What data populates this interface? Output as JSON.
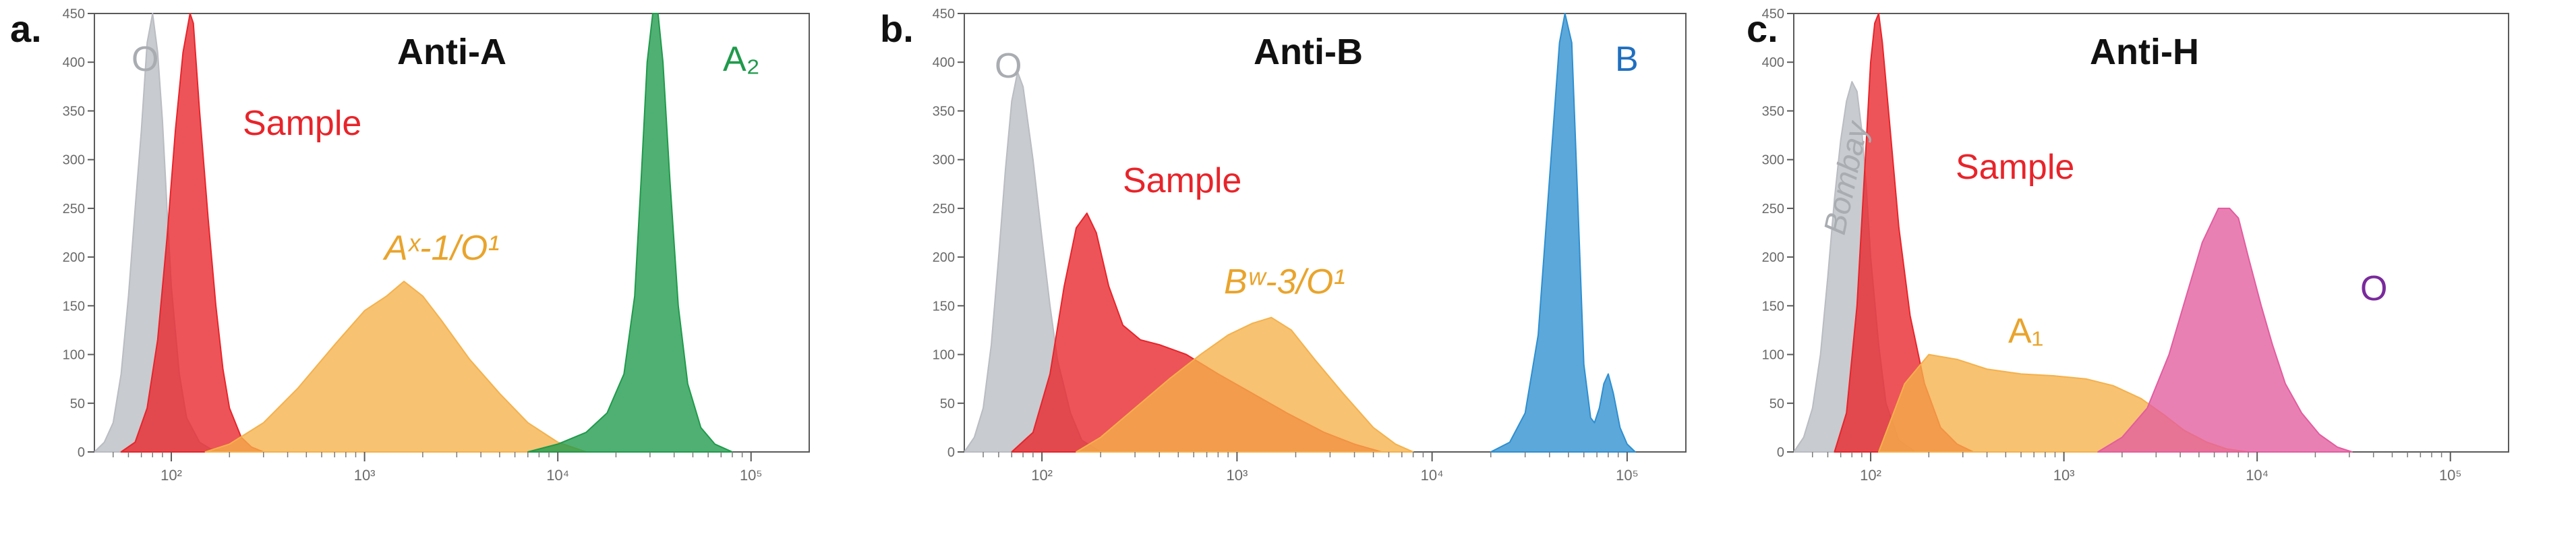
{
  "chart_data": [
    {
      "type": "area",
      "panel_letter": "a.",
      "title": "Anti-A",
      "xscale": "log",
      "xlim": [
        40,
        200000
      ],
      "ylim": [
        0,
        450
      ],
      "xticks": [
        100,
        1000,
        10000,
        100000
      ],
      "xtick_labels": [
        "10²",
        "10³",
        "10⁴",
        "10⁵"
      ],
      "yticks": [
        0,
        50,
        100,
        150,
        200,
        250,
        300,
        350,
        400,
        450
      ],
      "ytick_labels": [
        "0",
        "50",
        "100",
        "150",
        "200",
        "250",
        "300",
        "350",
        "400",
        "450"
      ],
      "grid": false,
      "series": [
        {
          "name": "O",
          "color": "#b9bcc2",
          "x": [
            40,
            45,
            50,
            55,
            60,
            65,
            70,
            75,
            80,
            85,
            90,
            95,
            100,
            110,
            120,
            140,
            160,
            200
          ],
          "y": [
            0,
            10,
            30,
            80,
            160,
            250,
            330,
            420,
            450,
            410,
            340,
            250,
            170,
            80,
            35,
            10,
            3,
            0
          ]
        },
        {
          "name": "Sample",
          "color": "#e8242a",
          "x": [
            55,
            65,
            75,
            85,
            95,
            105,
            115,
            125,
            130,
            140,
            155,
            170,
            185,
            200,
            230,
            260,
            300
          ],
          "y": [
            0,
            10,
            45,
            115,
            220,
            330,
            410,
            450,
            440,
            350,
            240,
            150,
            85,
            45,
            15,
            5,
            0
          ]
        },
        {
          "name": "Aˣ-1/O¹",
          "color": "#f5b14a",
          "x": [
            150,
            200,
            300,
            450,
            700,
            1000,
            1300,
            1600,
            2000,
            2500,
            3500,
            5000,
            7000,
            10000,
            14000
          ],
          "y": [
            0,
            8,
            30,
            65,
            110,
            145,
            160,
            175,
            160,
            135,
            95,
            60,
            30,
            10,
            0
          ]
        },
        {
          "name": "A₂",
          "color": "#1f9a4b",
          "x": [
            7000,
            10000,
            14000,
            18000,
            22000,
            25000,
            27000,
            29000,
            31000,
            33000,
            35000,
            38000,
            42000,
            47000,
            55000,
            65000,
            80000
          ],
          "y": [
            0,
            8,
            20,
            40,
            80,
            160,
            280,
            400,
            450,
            450,
            400,
            280,
            150,
            70,
            25,
            8,
            0
          ]
        }
      ]
    },
    {
      "type": "area",
      "panel_letter": "b.",
      "title": "Anti-B",
      "xscale": "log",
      "xlim": [
        40,
        200000
      ],
      "ylim": [
        0,
        450
      ],
      "xticks": [
        100,
        1000,
        10000,
        100000
      ],
      "xtick_labels": [
        "10²",
        "10³",
        "10⁴",
        "10⁵"
      ],
      "yticks": [
        0,
        50,
        100,
        150,
        200,
        250,
        300,
        350,
        400,
        450
      ],
      "ytick_labels": [
        "0",
        "50",
        "100",
        "150",
        "200",
        "250",
        "300",
        "350",
        "400",
        "450"
      ],
      "grid": false,
      "series": [
        {
          "name": "O",
          "color": "#b9bcc2",
          "x": [
            40,
            45,
            50,
            55,
            60,
            65,
            70,
            75,
            80,
            90,
            100,
            110,
            120,
            140,
            160,
            200
          ],
          "y": [
            0,
            15,
            45,
            110,
            200,
            290,
            360,
            390,
            375,
            300,
            220,
            150,
            95,
            40,
            12,
            0
          ]
        },
        {
          "name": "Sample",
          "color": "#e8242a",
          "x": [
            70,
            90,
            110,
            130,
            150,
            170,
            190,
            220,
            260,
            320,
            400,
            550,
            800,
            1200,
            1800,
            2800,
            4000,
            5500
          ],
          "y": [
            0,
            20,
            80,
            170,
            230,
            245,
            225,
            170,
            130,
            115,
            110,
            100,
            80,
            60,
            40,
            20,
            8,
            0
          ]
        },
        {
          "name": "Bʷ-3/O¹",
          "color": "#f5b14a",
          "x": [
            150,
            200,
            300,
            450,
            650,
            900,
            1200,
            1500,
            1900,
            2500,
            3500,
            5000,
            6500,
            8000
          ],
          "y": [
            0,
            15,
            45,
            75,
            100,
            120,
            132,
            138,
            125,
            95,
            60,
            25,
            8,
            0
          ]
        },
        {
          "name": "B",
          "color": "#2e8fd0",
          "x": [
            20000,
            25000,
            30000,
            35000,
            40000,
            45000,
            48000,
            52000,
            56000,
            60000,
            65000,
            68000,
            72000,
            76000,
            80000,
            85000,
            92000,
            100000,
            110000
          ],
          "y": [
            0,
            10,
            40,
            120,
            280,
            420,
            450,
            420,
            250,
            90,
            35,
            30,
            45,
            70,
            80,
            60,
            25,
            8,
            0
          ]
        }
      ]
    },
    {
      "type": "area",
      "panel_letter": "c.",
      "title": "Anti-H",
      "xscale": "log",
      "xlim": [
        40,
        200000
      ],
      "ylim": [
        0,
        450
      ],
      "xticks": [
        100,
        1000,
        10000,
        100000
      ],
      "xtick_labels": [
        "10²",
        "10³",
        "10⁴",
        "10⁵"
      ],
      "yticks": [
        0,
        50,
        100,
        150,
        200,
        250,
        300,
        350,
        400,
        450
      ],
      "ytick_labels": [
        "0",
        "50",
        "100",
        "150",
        "200",
        "250",
        "300",
        "350",
        "400",
        "450"
      ],
      "grid": false,
      "series": [
        {
          "name": "Bombay",
          "color": "#b9bcc2",
          "x": [
            40,
            45,
            50,
            55,
            60,
            65,
            70,
            75,
            80,
            85,
            90,
            95,
            100,
            110,
            120,
            140,
            170
          ],
          "y": [
            0,
            15,
            45,
            100,
            180,
            260,
            320,
            360,
            380,
            370,
            330,
            270,
            200,
            110,
            50,
            12,
            0
          ]
        },
        {
          "name": "Sample",
          "color": "#e8242a",
          "x": [
            65,
            75,
            85,
            95,
            100,
            105,
            110,
            115,
            125,
            140,
            160,
            190,
            230,
            280,
            340
          ],
          "y": [
            0,
            40,
            150,
            320,
            400,
            440,
            450,
            420,
            340,
            230,
            140,
            70,
            25,
            8,
            0
          ]
        },
        {
          "name": "A₁",
          "color": "#f5b14a",
          "x": [
            110,
            150,
            200,
            280,
            400,
            600,
            900,
            1300,
            1800,
            2500,
            3300,
            4200,
            5500,
            7000,
            9000
          ],
          "y": [
            0,
            70,
            100,
            95,
            85,
            80,
            78,
            75,
            68,
            55,
            38,
            22,
            10,
            3,
            0
          ]
        },
        {
          "name": "O",
          "color": "#e35c9f",
          "x": [
            1500,
            2000,
            2700,
            3500,
            4300,
            5200,
            6300,
            7200,
            8000,
            9000,
            10500,
            12000,
            14000,
            17000,
            21000,
            26000,
            31000
          ],
          "y": [
            0,
            15,
            45,
            100,
            160,
            215,
            250,
            250,
            240,
            200,
            150,
            110,
            70,
            40,
            18,
            5,
            0
          ]
        }
      ]
    }
  ]
}
